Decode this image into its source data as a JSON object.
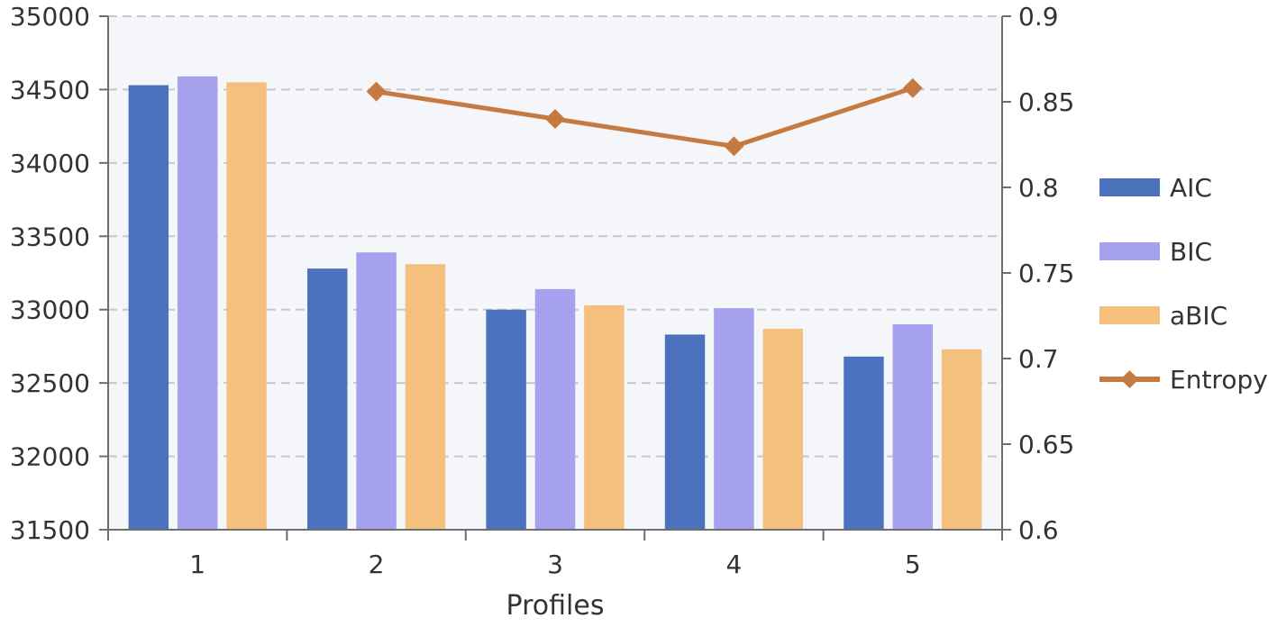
{
  "chart_data": {
    "type": "bar",
    "title": "",
    "xlabel": "Profiles",
    "ylabel": "",
    "y2label": "",
    "categories": [
      "1",
      "2",
      "3",
      "4",
      "5"
    ],
    "ylim": [
      31500,
      35000
    ],
    "y_ticks": [
      "31500",
      "32000",
      "32500",
      "33000",
      "33500",
      "34000",
      "34500",
      "35000"
    ],
    "y2lim": [
      0.6,
      0.9
    ],
    "y2_ticks": [
      "0.6",
      "0.65",
      "0.7",
      "0.75",
      "0.8",
      "0.85",
      "0.9"
    ],
    "grid": true,
    "legend_position": "right",
    "series": [
      {
        "name": "AIC",
        "kind": "bar",
        "axis": "left",
        "color": "#4d72bd",
        "values": [
          34530,
          33280,
          33000,
          32830,
          32680
        ]
      },
      {
        "name": "BIC",
        "kind": "bar",
        "axis": "left",
        "color": "#a5a1ef",
        "values": [
          34590,
          33390,
          33140,
          33010,
          32900
        ]
      },
      {
        "name": "aBIC",
        "kind": "bar",
        "axis": "left",
        "color": "#f5c07e",
        "values": [
          34550,
          33310,
          33030,
          32870,
          32730
        ]
      },
      {
        "name": "Entropy",
        "kind": "line",
        "axis": "right",
        "color": "#c57a42",
        "values": [
          null,
          0.856,
          0.84,
          0.824,
          0.858
        ]
      }
    ]
  }
}
